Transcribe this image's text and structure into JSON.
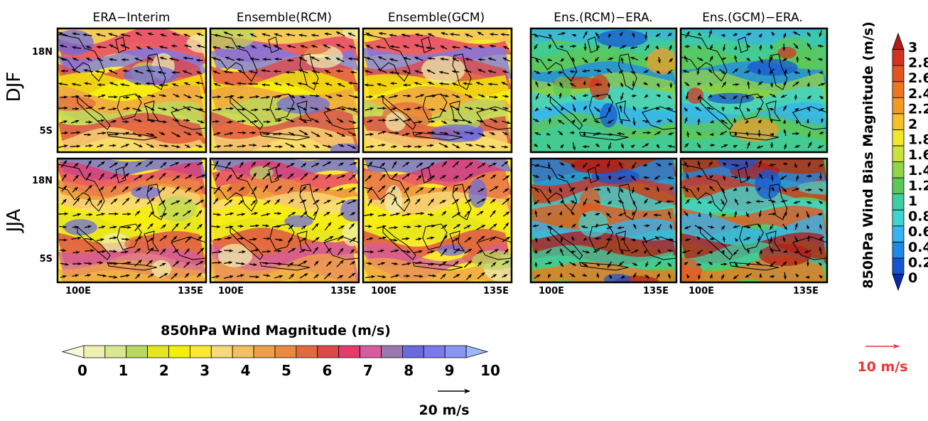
{
  "columns": [
    "ERA−Interim",
    "Ensemble(RCM)",
    "Ensemble(GCM)",
    "Ens.(RCM)−ERA.",
    "Ens.(GCM)−ERA."
  ],
  "seasons": [
    "DJF",
    "JJA"
  ],
  "lat_ticks": [
    "18N",
    "5S"
  ],
  "lon_ticks": [
    "100E",
    "135E"
  ],
  "magnitude_colorbar": {
    "title": "850hPa Wind Magnitude (m/s)",
    "labels": [
      "0",
      "1",
      "2",
      "3",
      "4",
      "5",
      "6",
      "7",
      "8",
      "9",
      "10"
    ],
    "colors": [
      "#f8f8d8",
      "#eef0b0",
      "#d8e890",
      "#b8d860",
      "#e6e61e",
      "#f5ef05",
      "#fde830",
      "#f8d878",
      "#f2c060",
      "#eea048",
      "#ea8a40",
      "#e26a40",
      "#de4848",
      "#e53a6e",
      "#d65c9e",
      "#9a78b0",
      "#6a6ae0",
      "#7a7aec",
      "#8a94f2",
      "#9ab8fa"
    ]
  },
  "bias_colorbar": {
    "title": "850hPa Wind Bias Magnitude (m/s)",
    "labels": [
      "0",
      "0.2",
      "0.4",
      "0.6",
      "0.8",
      "1",
      "1.2",
      "1.4",
      "1.6",
      "1.8",
      "2",
      "2.2",
      "2.4",
      "2.6",
      "2.8",
      "3"
    ],
    "colors": [
      "#0a28a8",
      "#1654d2",
      "#1e8ae8",
      "#35b4f2",
      "#3ed4d2",
      "#3ecca2",
      "#5ac85a",
      "#92d448",
      "#cce03a",
      "#f2e82a",
      "#f8c028",
      "#f49a24",
      "#ee7620",
      "#e4541e",
      "#d4321e",
      "#b41a18"
    ]
  },
  "reference_vectors": {
    "magnitude": "20 m/s",
    "bias": "10 m/s",
    "bias_color": "#ee3333"
  }
}
